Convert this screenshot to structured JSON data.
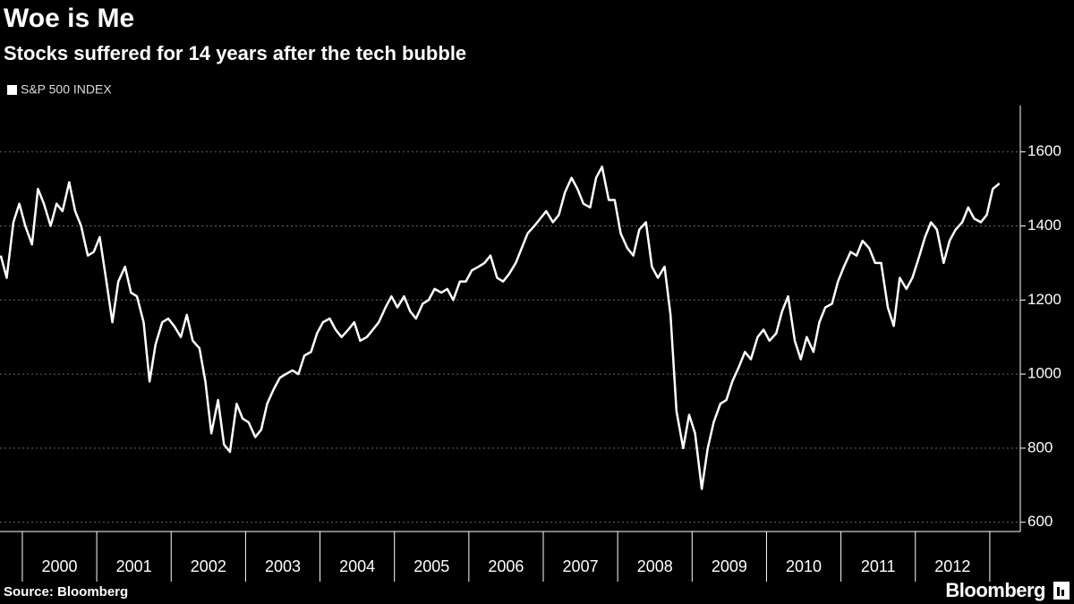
{
  "chart_data": {
    "type": "line",
    "title": "Woe is Me",
    "subtitle": "Stocks suffered for 14 years after the tech bubble",
    "source": "Source: Bloomberg",
    "brand": "Bloomberg",
    "legend": "top-left",
    "grid": true,
    "xlim": [
      1999.7,
      2013.41
    ],
    "xticks": [
      2000,
      2001,
      2002,
      2003,
      2004,
      2005,
      2006,
      2007,
      2008,
      2009,
      2010,
      2011,
      2012
    ],
    "ylim": [
      575,
      1725
    ],
    "yticks": [
      600,
      800,
      1000,
      1200,
      1400,
      1600
    ],
    "series": [
      {
        "name": "S&P 500 INDEX",
        "color": "#ffffff",
        "x": [
          1999.71,
          1999.79,
          1999.88,
          1999.96,
          2000.04,
          2000.13,
          2000.21,
          2000.29,
          2000.38,
          2000.46,
          2000.54,
          2000.63,
          2000.71,
          2000.79,
          2000.88,
          2000.96,
          2001.04,
          2001.13,
          2001.21,
          2001.29,
          2001.38,
          2001.46,
          2001.54,
          2001.63,
          2001.71,
          2001.79,
          2001.88,
          2001.96,
          2002.04,
          2002.13,
          2002.21,
          2002.29,
          2002.38,
          2002.46,
          2002.54,
          2002.63,
          2002.71,
          2002.79,
          2002.88,
          2002.96,
          2003.04,
          2003.13,
          2003.21,
          2003.29,
          2003.38,
          2003.46,
          2003.54,
          2003.63,
          2003.71,
          2003.79,
          2003.88,
          2003.96,
          2004.04,
          2004.13,
          2004.21,
          2004.29,
          2004.38,
          2004.46,
          2004.54,
          2004.63,
          2004.71,
          2004.79,
          2004.88,
          2004.96,
          2005.04,
          2005.13,
          2005.21,
          2005.29,
          2005.38,
          2005.46,
          2005.54,
          2005.63,
          2005.71,
          2005.79,
          2005.88,
          2005.96,
          2006.04,
          2006.13,
          2006.21,
          2006.29,
          2006.38,
          2006.46,
          2006.54,
          2006.63,
          2006.71,
          2006.79,
          2006.88,
          2006.96,
          2007.04,
          2007.13,
          2007.21,
          2007.29,
          2007.38,
          2007.46,
          2007.54,
          2007.63,
          2007.71,
          2007.79,
          2007.88,
          2007.96,
          2008.04,
          2008.13,
          2008.21,
          2008.29,
          2008.38,
          2008.46,
          2008.54,
          2008.63,
          2008.71,
          2008.79,
          2008.88,
          2008.96,
          2009.04,
          2009.13,
          2009.21,
          2009.29,
          2009.38,
          2009.46,
          2009.54,
          2009.63,
          2009.71,
          2009.79,
          2009.88,
          2009.96,
          2010.04,
          2010.13,
          2010.21,
          2010.29,
          2010.38,
          2010.46,
          2010.54,
          2010.63,
          2010.71,
          2010.79,
          2010.88,
          2010.96,
          2011.04,
          2011.13,
          2011.21,
          2011.29,
          2011.38,
          2011.46,
          2011.54,
          2011.63,
          2011.71,
          2011.79,
          2011.88,
          2011.96,
          2012.04,
          2012.13,
          2012.21,
          2012.29,
          2012.38,
          2012.46,
          2012.54,
          2012.63,
          2012.71,
          2012.79,
          2012.88,
          2012.96,
          2013.04,
          2013.13
        ],
        "values": [
          1320,
          1260,
          1410,
          1460,
          1400,
          1350,
          1500,
          1460,
          1400,
          1460,
          1440,
          1518,
          1440,
          1400,
          1320,
          1330,
          1370,
          1250,
          1140,
          1250,
          1290,
          1220,
          1210,
          1140,
          980,
          1080,
          1140,
          1150,
          1130,
          1100,
          1160,
          1090,
          1070,
          980,
          840,
          930,
          810,
          790,
          920,
          880,
          870,
          830,
          850,
          920,
          960,
          990,
          1000,
          1010,
          1000,
          1050,
          1060,
          1110,
          1140,
          1150,
          1120,
          1100,
          1120,
          1140,
          1090,
          1100,
          1120,
          1140,
          1180,
          1210,
          1180,
          1210,
          1170,
          1150,
          1190,
          1200,
          1230,
          1220,
          1230,
          1200,
          1250,
          1250,
          1280,
          1290,
          1300,
          1320,
          1260,
          1250,
          1270,
          1300,
          1340,
          1380,
          1400,
          1420,
          1440,
          1410,
          1430,
          1490,
          1530,
          1500,
          1460,
          1450,
          1530,
          1560,
          1470,
          1470,
          1380,
          1340,
          1320,
          1390,
          1410,
          1290,
          1260,
          1290,
          1160,
          900,
          800,
          890,
          840,
          690,
          800,
          870,
          920,
          930,
          980,
          1020,
          1060,
          1040,
          1100,
          1120,
          1090,
          1110,
          1170,
          1210,
          1090,
          1040,
          1100,
          1060,
          1140,
          1180,
          1190,
          1250,
          1290,
          1330,
          1320,
          1360,
          1340,
          1300,
          1300,
          1180,
          1130,
          1260,
          1230,
          1260,
          1310,
          1370,
          1410,
          1390,
          1300,
          1360,
          1390,
          1410,
          1450,
          1420,
          1410,
          1430,
          1500,
          1515
        ]
      }
    ]
  }
}
